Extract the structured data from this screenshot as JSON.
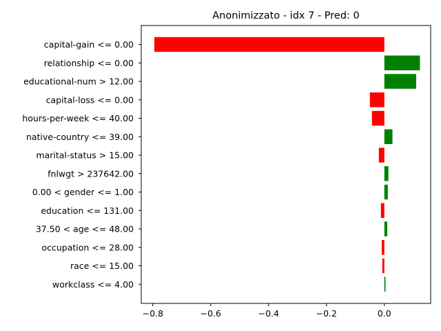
{
  "chart_data": {
    "type": "bar",
    "orientation": "horizontal",
    "title": "Anonimizzato - idx 7 - Pred: 0",
    "xlabel": "",
    "ylabel": "",
    "xlim": [
      -0.84,
      0.16
    ],
    "xticks": [
      -0.8,
      -0.6,
      -0.4,
      -0.2,
      0.0
    ],
    "xtick_labels": [
      "−0.8",
      "−0.6",
      "−0.4",
      "−0.2",
      "0.0"
    ],
    "grid": false,
    "colors": {
      "positive": "#008000",
      "negative": "#ff0000"
    },
    "categories": [
      "capital-gain <= 0.00",
      "relationship <= 0.00",
      "educational-num > 12.00",
      "capital-loss <= 0.00",
      "hours-per-week <= 40.00",
      "native-country <= 39.00",
      "marital-status > 15.00",
      "fnlwgt > 237642.00",
      "0.00 < gender <= 1.00",
      "education <= 131.00",
      "37.50 < age <= 48.00",
      "occupation <= 28.00",
      "race <= 15.00",
      "workclass <= 4.00"
    ],
    "values": [
      -0.795,
      0.123,
      0.11,
      -0.05,
      -0.043,
      0.028,
      -0.019,
      0.014,
      0.012,
      -0.012,
      0.01,
      -0.009,
      -0.007,
      0.004
    ]
  }
}
